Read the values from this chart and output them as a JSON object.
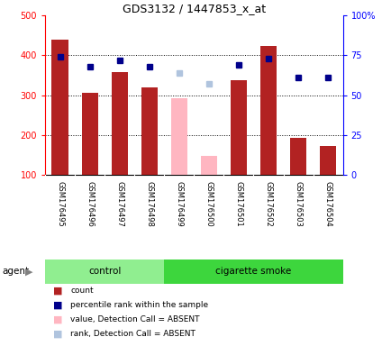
{
  "title": "GDS3132 / 1447853_x_at",
  "samples": [
    "GSM176495",
    "GSM176496",
    "GSM176497",
    "GSM176498",
    "GSM176499",
    "GSM176500",
    "GSM176501",
    "GSM176502",
    "GSM176503",
    "GSM176504"
  ],
  "counts": [
    440,
    307,
    358,
    320,
    null,
    null,
    337,
    423,
    192,
    172
  ],
  "counts_absent": [
    null,
    null,
    null,
    null,
    292,
    148,
    null,
    null,
    null,
    null
  ],
  "percentile_ranks": [
    74,
    68,
    72,
    68,
    null,
    null,
    69,
    73,
    61,
    61
  ],
  "percentile_ranks_absent": [
    null,
    null,
    null,
    null,
    64,
    57,
    null,
    null,
    null,
    null
  ],
  "groups": [
    "control",
    "control",
    "control",
    "control",
    "cigarette smoke",
    "cigarette smoke",
    "cigarette smoke",
    "cigarette smoke",
    "cigarette smoke",
    "cigarette smoke"
  ],
  "group_colors": {
    "control": "#90EE90",
    "cigarette smoke": "#3DD63D"
  },
  "ylim_left": [
    100,
    500
  ],
  "ylim_right": [
    0,
    100
  ],
  "yticks_left": [
    100,
    200,
    300,
    400,
    500
  ],
  "yticks_right": [
    0,
    25,
    50,
    75,
    100
  ],
  "bar_color_normal": "#B22222",
  "bar_color_absent": "#FFB6C1",
  "dot_color_normal": "#00008B",
  "dot_color_absent": "#B0C4DE",
  "bar_width": 0.55,
  "agent_label": "agent",
  "legend_items": [
    {
      "color": "#B22222",
      "label": "count"
    },
    {
      "color": "#00008B",
      "label": "percentile rank within the sample"
    },
    {
      "color": "#FFB6C1",
      "label": "value, Detection Call = ABSENT"
    },
    {
      "color": "#B0C4DE",
      "label": "rank, Detection Call = ABSENT"
    }
  ],
  "grid_lines": [
    200,
    300,
    400
  ],
  "xtick_bg_color": "#C8C8C8"
}
